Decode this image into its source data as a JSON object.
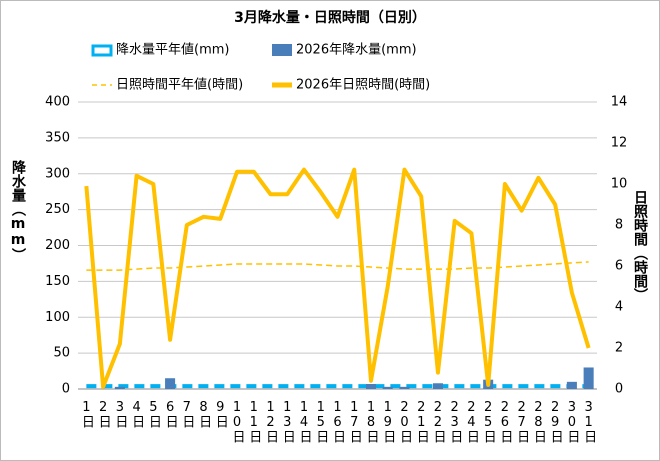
{
  "chart_data": {
    "type": "bar-line",
    "title": "3月降水量・日照時間（日別）",
    "y_label": "降水量（mm）",
    "y2_label": "日照時間（時間）",
    "categories": [
      "1日",
      "2日",
      "3日",
      "4日",
      "5日",
      "6日",
      "7日",
      "8日",
      "9日",
      "10日",
      "11日",
      "12日",
      "13日",
      "14日",
      "15日",
      "16日",
      "17日",
      "18日",
      "19日",
      "20日",
      "21日",
      "22日",
      "23日",
      "24日",
      "25日",
      "26日",
      "27日",
      "28日",
      "29日",
      "30日",
      "31日"
    ],
    "ylim": [
      0,
      400
    ],
    "yticks": [
      0,
      50,
      100,
      150,
      200,
      250,
      300,
      350,
      400
    ],
    "y2lim": [
      0,
      14
    ],
    "y2ticks": [
      0,
      2,
      4,
      6,
      8,
      10,
      12,
      14
    ],
    "grid": true,
    "legend": "top",
    "series": [
      {
        "name": "降水量平年値(mm)",
        "type": "dashed-line",
        "color": "#00b0f0",
        "axis": "y",
        "values": [
          4,
          4,
          4,
          4,
          4,
          4,
          4,
          4,
          4,
          4,
          4,
          4,
          4,
          4,
          4,
          4,
          4,
          4,
          4,
          4,
          4,
          4,
          4,
          4,
          4,
          4,
          4,
          4,
          4,
          4,
          4
        ]
      },
      {
        "name": "2026年降水量(mm)",
        "type": "bar",
        "color": "#4a7ebb",
        "axis": "y",
        "values": [
          0,
          0,
          3,
          0,
          0,
          15,
          0,
          0,
          0,
          0,
          0,
          0,
          0,
          0,
          0,
          0,
          0,
          7,
          3,
          3,
          0,
          8,
          0,
          0,
          13,
          0,
          0,
          0,
          0,
          10,
          30
        ]
      },
      {
        "name": "日照時間平年値(時間)",
        "type": "dashed-line",
        "color": "#ffc000",
        "axis": "y2",
        "values": [
          5.8,
          5.8,
          5.8,
          5.85,
          5.9,
          5.9,
          5.95,
          6.0,
          6.05,
          6.1,
          6.1,
          6.1,
          6.1,
          6.1,
          6.05,
          6.0,
          6.0,
          5.95,
          5.9,
          5.85,
          5.85,
          5.85,
          5.85,
          5.9,
          5.9,
          5.95,
          6.0,
          6.05,
          6.1,
          6.15,
          6.2
        ]
      },
      {
        "name": "2026年日照時間(時間)",
        "type": "line",
        "color": "#ffc000",
        "axis": "y2",
        "values": [
          9.9,
          0.1,
          2.2,
          10.4,
          10.0,
          2.4,
          8.0,
          8.4,
          8.3,
          10.6,
          10.6,
          9.5,
          9.5,
          10.7,
          9.6,
          8.4,
          10.7,
          0.4,
          5.0,
          10.7,
          9.4,
          0.8,
          8.2,
          7.6,
          0.2,
          10.0,
          8.7,
          10.3,
          9.0,
          4.7,
          2.0
        ]
      }
    ]
  }
}
